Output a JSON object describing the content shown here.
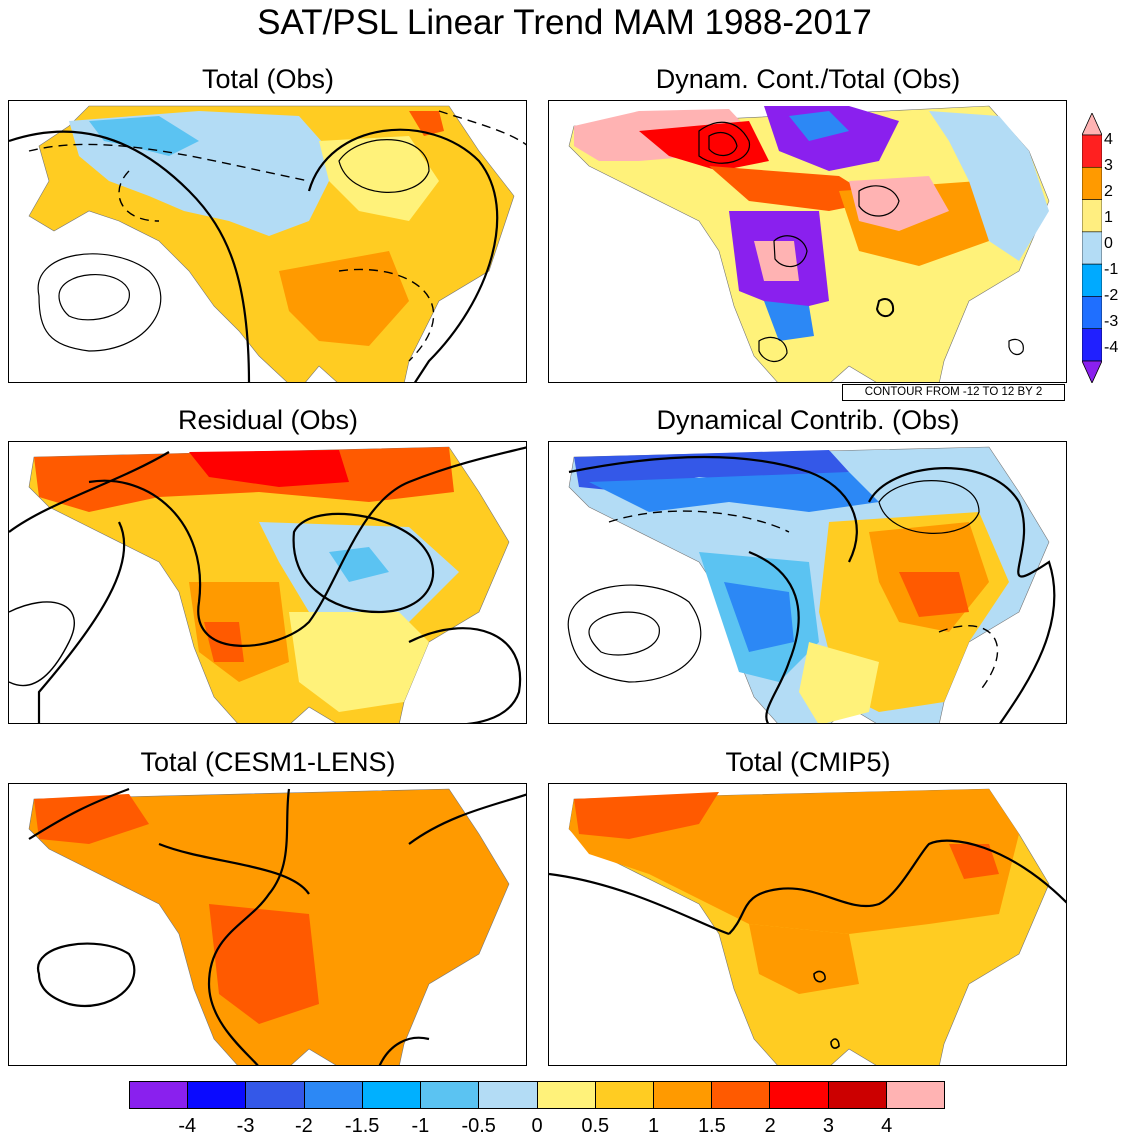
{
  "title": "SAT/PSL Linear Trend MAM 1988-2017",
  "panels": [
    {
      "id": "total-obs",
      "title": "Total (Obs)"
    },
    {
      "id": "dynam-cont-total-obs",
      "title": "Dynam. Cont./Total (Obs)"
    },
    {
      "id": "residual-obs",
      "title": "Residual (Obs)"
    },
    {
      "id": "dynamical-contrib-obs",
      "title": "Dynamical Contrib. (Obs)"
    },
    {
      "id": "total-cesm1-lens",
      "title": "Total (CESM1-LENS)"
    },
    {
      "id": "total-cmip5",
      "title": "Total (CMIP5)"
    }
  ],
  "contour_note": "CONTOUR FROM -12 TO 12 BY 2",
  "ratio_colorbar": {
    "labels": [
      "4",
      "3",
      "2",
      "1",
      "0",
      "-1",
      "-2",
      "-3",
      "-4"
    ],
    "colors": [
      "#ff2020",
      "#ff9a00",
      "#ffee80",
      "#b3dcf5",
      "#00aaff",
      "#1f6fff",
      "#2020ff"
    ]
  },
  "trend_colorbar": {
    "labels": [
      "-4",
      "-3",
      "-2",
      "-1.5",
      "-1",
      "-0.5",
      "0",
      "0.5",
      "1",
      "1.5",
      "2",
      "3",
      "4"
    ],
    "colors": [
      "#8a20ee",
      "#0a0aff",
      "#3458e8",
      "#2c88f5",
      "#00b0ff",
      "#5bc3f2",
      "#b3dcf5",
      "#fff27a",
      "#ffcc22",
      "#ff9a00",
      "#ff5a00",
      "#ff0000",
      "#cc0000",
      "#ffb3b3"
    ]
  },
  "colors": {
    "land_warm_light": "#fff27a",
    "land_warm": "#ffcc22",
    "land_warm_mid": "#ff9a00",
    "land_hot": "#ff5a00",
    "land_very_hot": "#ff0000",
    "cool_light": "#b3dcf5",
    "cool": "#5bc3f2",
    "cool_mid": "#2c88f5",
    "cool_strong": "#3458e8",
    "purple": "#8a20ee",
    "pink": "#ffb3b3"
  }
}
